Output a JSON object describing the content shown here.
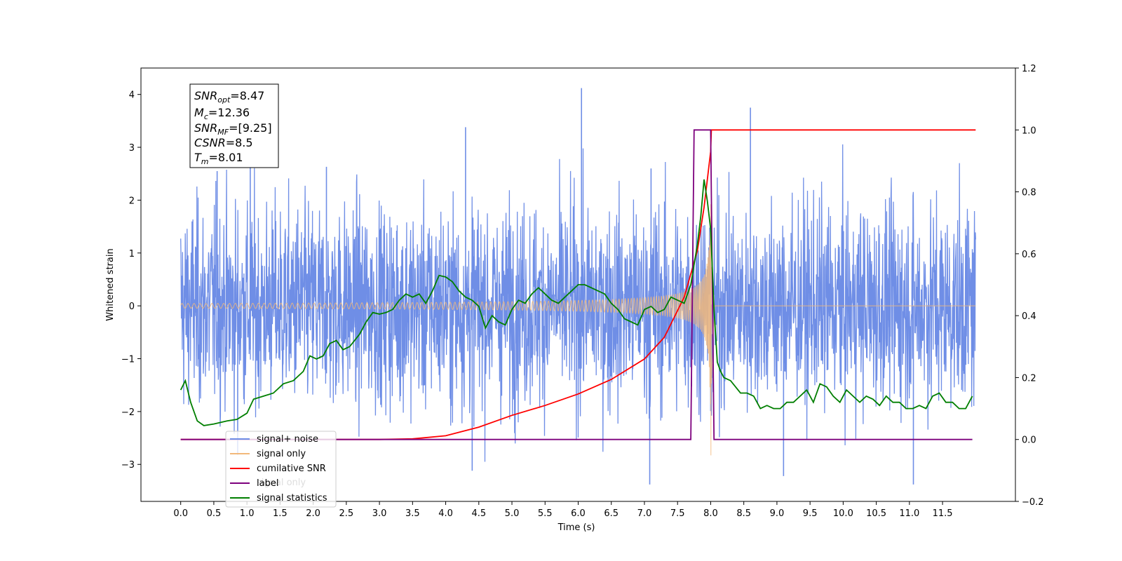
{
  "colors": {
    "signal_noise": "#6f8ee6",
    "signal_only": "#f2b87a",
    "cumulative_snr": "#ff0000",
    "label": "#7d007d",
    "signal_statistics": "#007f00"
  },
  "info_box": {
    "line1_main": "SNR",
    "line1_sub": "opt",
    "line1_val": "=8.47",
    "line2_main": "M",
    "line2_sub": "c",
    "line2_val": "=12.36",
    "line3_main": "SNR",
    "line3_sub": "MF",
    "line3_val": "=[9.25]",
    "line4_main": "CSNR",
    "line4_val": "=8.5",
    "line5_main": "T",
    "line5_sub": "m",
    "line5_val": "=8.01"
  },
  "legend": {
    "position": "lower-left",
    "entries": [
      "signal+ noise",
      "signal only",
      "cumilative SNR",
      "label",
      "signal statistics"
    ],
    "ghost_text": "signal only"
  },
  "chart_data": {
    "type": "line",
    "xlabel": "Time (s)",
    "ylabel_left": "Whitened strain",
    "ylabel_right": "",
    "xlim": [
      -0.6,
      12.6
    ],
    "ylim_left": [
      -3.7,
      4.5
    ],
    "ylim_right": [
      -0.2,
      1.2
    ],
    "x_ticks": [
      "0.0",
      "0.5",
      "1.0",
      "1.5",
      "2.0",
      "2.5",
      "3.0",
      "3.5",
      "4.0",
      "4.5",
      "5.0",
      "5.5",
      "6.0",
      "6.5",
      "7.0",
      "7.5",
      "8.0",
      "8.5",
      "9.0",
      "9.5",
      "10.0",
      "10.5",
      "11.0",
      "11.5"
    ],
    "y_ticks_left": [
      "4",
      "3",
      "2",
      "1",
      "0",
      "−1",
      "−2",
      "−3"
    ],
    "y_ticks_right": [
      "1.2",
      "1.0",
      "0.8",
      "0.6",
      "0.4",
      "0.2",
      "0.0",
      "−0.2"
    ],
    "grid": false,
    "series": [
      {
        "name": "signal+ noise",
        "axis": "left",
        "description_values": {
          "x_range": [
            0.0,
            12.0
          ],
          "typical_range": [
            -2.3,
            2.5
          ],
          "max": 4.12,
          "max_at": 6.05,
          "min": -3.38,
          "min_at": 7.08
        }
      },
      {
        "name": "signal only",
        "axis": "left",
        "description_values": {
          "x_range": [
            0.0,
            12.0
          ],
          "merger_time": 8.01,
          "peak_amplitude": 3.05
        }
      },
      {
        "name": "cumilative SNR",
        "axis": "right",
        "x": [
          0.0,
          3.0,
          3.5,
          4.0,
          4.5,
          5.0,
          5.5,
          6.0,
          6.5,
          7.0,
          7.3,
          7.6,
          7.8,
          7.9,
          8.0,
          8.01,
          12.0
        ],
        "y": [
          0.0,
          0.0,
          0.002,
          0.012,
          0.04,
          0.078,
          0.11,
          0.147,
          0.194,
          0.26,
          0.33,
          0.46,
          0.61,
          0.75,
          0.93,
          1.0,
          1.0
        ]
      },
      {
        "name": "label",
        "axis": "right",
        "x": [
          0.0,
          7.7,
          7.75,
          8.0,
          8.05,
          11.95
        ],
        "y": [
          0.0,
          0.0,
          1.0,
          1.0,
          0.0,
          0.0
        ]
      },
      {
        "name": "signal statistics",
        "axis": "right",
        "x": [
          0.0,
          0.07,
          0.15,
          0.25,
          0.35,
          0.5,
          0.7,
          0.85,
          1.0,
          1.1,
          1.25,
          1.4,
          1.55,
          1.7,
          1.85,
          1.95,
          2.05,
          2.15,
          2.25,
          2.35,
          2.45,
          2.55,
          2.7,
          2.8,
          2.9,
          3.0,
          3.1,
          3.2,
          3.3,
          3.4,
          3.5,
          3.6,
          3.7,
          3.8,
          3.9,
          4.0,
          4.1,
          4.2,
          4.3,
          4.4,
          4.5,
          4.6,
          4.7,
          4.8,
          4.9,
          5.0,
          5.1,
          5.2,
          5.3,
          5.4,
          5.5,
          5.6,
          5.7,
          5.8,
          5.9,
          6.0,
          6.1,
          6.2,
          6.3,
          6.4,
          6.5,
          6.6,
          6.7,
          6.8,
          6.9,
          7.0,
          7.1,
          7.2,
          7.3,
          7.4,
          7.5,
          7.6,
          7.7,
          7.8,
          7.85,
          7.9,
          7.95,
          8.0,
          8.05,
          8.1,
          8.15,
          8.2,
          8.3,
          8.45,
          8.55,
          8.65,
          8.75,
          8.85,
          8.95,
          9.05,
          9.15,
          9.25,
          9.35,
          9.45,
          9.55,
          9.65,
          9.75,
          9.85,
          9.95,
          10.05,
          10.15,
          10.25,
          10.35,
          10.45,
          10.55,
          10.65,
          10.75,
          10.85,
          10.95,
          11.05,
          11.15,
          11.25,
          11.35,
          11.45,
          11.55,
          11.65,
          11.75,
          11.85,
          11.95
        ],
        "y": [
          0.16,
          0.19,
          0.12,
          0.06,
          0.045,
          0.05,
          0.06,
          0.065,
          0.085,
          0.13,
          0.14,
          0.15,
          0.18,
          0.19,
          0.22,
          0.27,
          0.26,
          0.27,
          0.31,
          0.32,
          0.29,
          0.3,
          0.34,
          0.38,
          0.41,
          0.405,
          0.41,
          0.42,
          0.45,
          0.47,
          0.46,
          0.47,
          0.44,
          0.48,
          0.53,
          0.525,
          0.51,
          0.48,
          0.46,
          0.45,
          0.43,
          0.36,
          0.4,
          0.38,
          0.37,
          0.42,
          0.45,
          0.44,
          0.47,
          0.49,
          0.47,
          0.45,
          0.44,
          0.46,
          0.48,
          0.5,
          0.5,
          0.49,
          0.48,
          0.47,
          0.44,
          0.42,
          0.39,
          0.38,
          0.37,
          0.42,
          0.43,
          0.41,
          0.42,
          0.46,
          0.45,
          0.44,
          0.5,
          0.63,
          0.72,
          0.84,
          0.77,
          0.68,
          0.42,
          0.25,
          0.22,
          0.2,
          0.19,
          0.15,
          0.15,
          0.14,
          0.1,
          0.11,
          0.1,
          0.1,
          0.12,
          0.12,
          0.14,
          0.16,
          0.12,
          0.18,
          0.17,
          0.14,
          0.12,
          0.16,
          0.14,
          0.12,
          0.14,
          0.13,
          0.11,
          0.14,
          0.12,
          0.12,
          0.1,
          0.1,
          0.11,
          0.1,
          0.14,
          0.15,
          0.12,
          0.12,
          0.1,
          0.1,
          0.14
        ]
      }
    ]
  }
}
